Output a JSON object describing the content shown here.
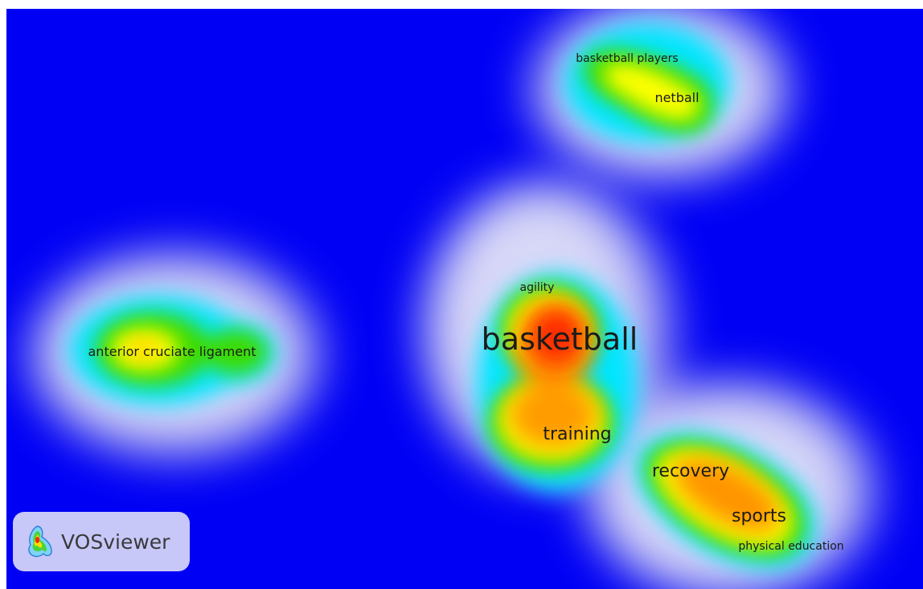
{
  "colors": {
    "background": "#0000f5",
    "scale": [
      "#0000f5",
      "#00e5ff",
      "#3ddc00",
      "#ffff00",
      "#ff9800",
      "#ff2000"
    ]
  },
  "terms": [
    {
      "label": "basketball players"
    },
    {
      "label": "netball"
    },
    {
      "label": "agility"
    },
    {
      "label": "basketball"
    },
    {
      "label": "anterior cruciate ligament"
    },
    {
      "label": "training"
    },
    {
      "label": "recovery"
    },
    {
      "label": "sports"
    },
    {
      "label": "physical education"
    }
  ],
  "branding": {
    "logo_icon": "vosviewer-logo-icon",
    "name": "VOSviewer"
  }
}
